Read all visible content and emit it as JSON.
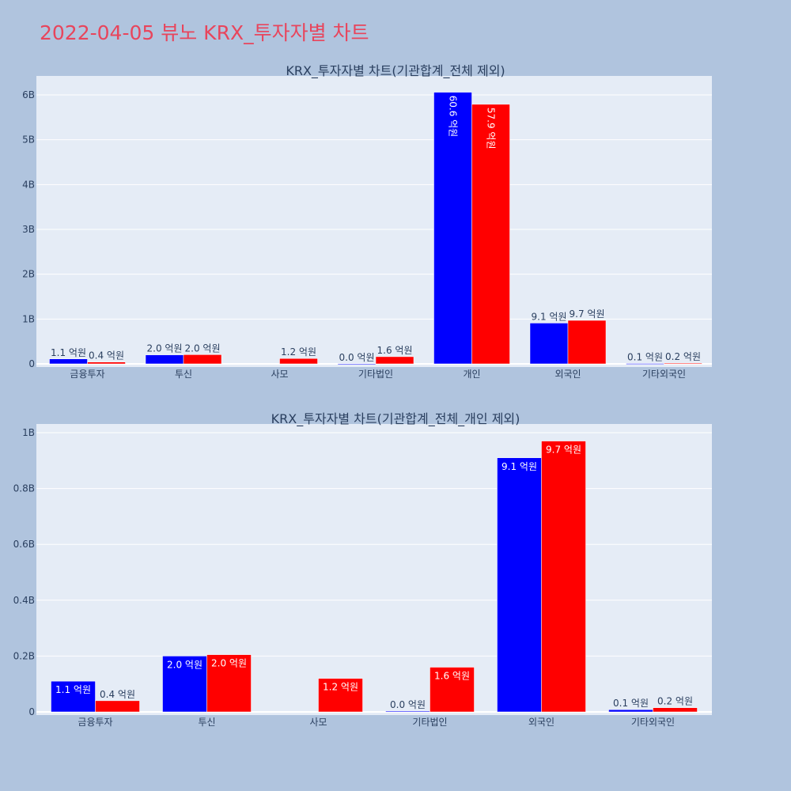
{
  "title": "2022-04-05 뷰노 KRX_투자자별 차트",
  "colors": {
    "buy": "#0000ff",
    "sell": "#ff0000",
    "plot_bg": "#e5ecf6",
    "page_bg": "#b0c4de",
    "title": "#e8455c"
  },
  "chart_data": [
    {
      "type": "bar",
      "title": "KRX_투자자별 차트(기관합계_전체 제외)",
      "categories": [
        "금융투자",
        "투신",
        "사모",
        "기타법인",
        "개인",
        "외국인",
        "기타외국인"
      ],
      "series": [
        {
          "values": [
            110000000,
            200000000,
            0,
            3000000,
            6060000000,
            910000000,
            8000000
          ],
          "labels": [
            "1.1 억원",
            "2.0 억원",
            "",
            "0.0 억원",
            "60.6 억원",
            "9.1 억원",
            "0.1 억원"
          ]
        },
        {
          "values": [
            40000000,
            205000000,
            120000000,
            160000000,
            5790000000,
            970000000,
            15000000
          ],
          "labels": [
            "0.4 억원",
            "2.0 억원",
            "1.2 억원",
            "1.6 억원",
            "57.9 억원",
            "9.7 억원",
            "0.2 억원"
          ]
        }
      ],
      "ylim": [
        0,
        6400000000
      ],
      "yticks": [
        0,
        1000000000,
        2000000000,
        3000000000,
        4000000000,
        5000000000,
        6000000000
      ],
      "ytick_labels": [
        "0",
        "1B",
        "2B",
        "3B",
        "4B",
        "5B",
        "6B"
      ],
      "grid": true
    },
    {
      "type": "bar",
      "title": "KRX_투자자별 차트(기관합계_전체_개인 제외)",
      "categories": [
        "금융투자",
        "투신",
        "사모",
        "기타법인",
        "외국인",
        "기타외국인"
      ],
      "series": [
        {
          "values": [
            110000000,
            200000000,
            0,
            3000000,
            910000000,
            8000000
          ],
          "labels": [
            "1.1 억원",
            "2.0 억원",
            "",
            "0.0 억원",
            "9.1 억원",
            "0.1 억원"
          ]
        },
        {
          "values": [
            40000000,
            205000000,
            120000000,
            160000000,
            970000000,
            15000000
          ],
          "labels": [
            "0.4 억원",
            "2.0 억원",
            "1.2 억원",
            "1.6 억원",
            "9.7 억원",
            "0.2 억원"
          ]
        }
      ],
      "ylim": [
        0,
        1030000000
      ],
      "yticks": [
        0,
        200000000,
        400000000,
        600000000,
        800000000,
        1000000000
      ],
      "ytick_labels": [
        "0",
        "0.2B",
        "0.4B",
        "0.6B",
        "0.8B",
        "1B"
      ],
      "grid": true
    }
  ]
}
